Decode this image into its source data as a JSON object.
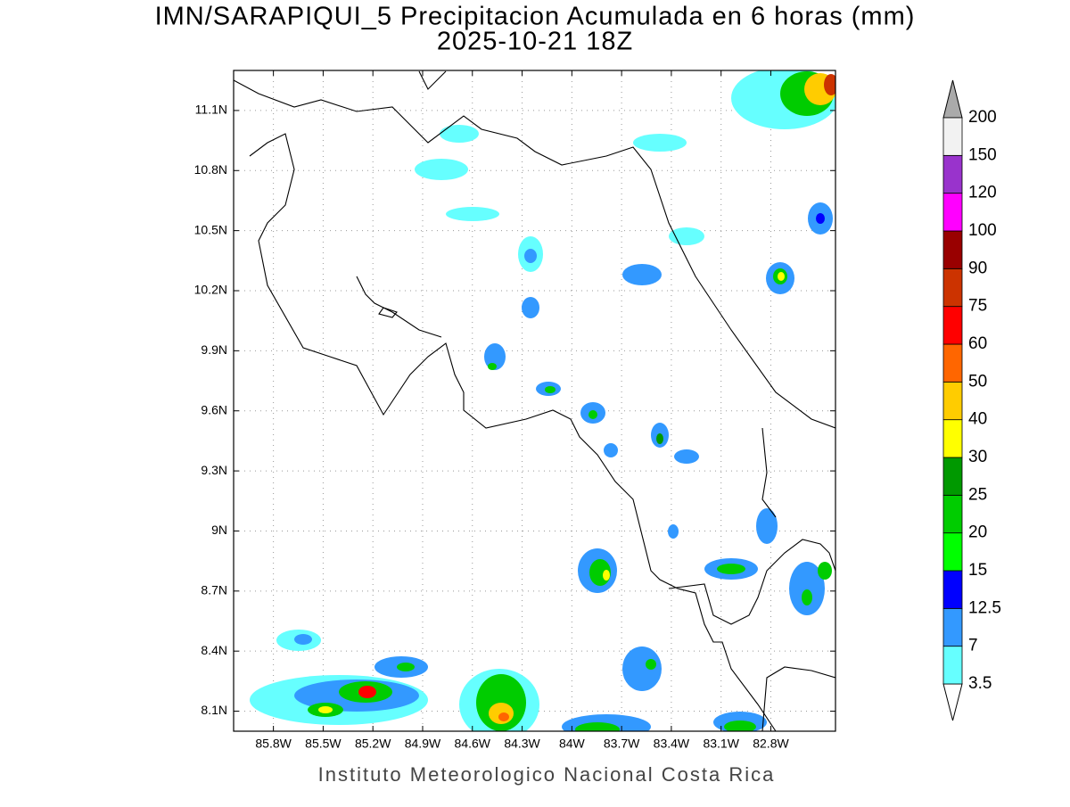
{
  "map": {
    "title": [
      "IMN/SARAPIQUI_5 Precipitacion Acumulada en 6 horas (mm)",
      "2025-10-21 18Z"
    ],
    "latlim": [
      8.0,
      11.3
    ],
    "lonlim": [
      -86.04,
      -82.41
    ],
    "latticks": [
      {
        "value": 8.1,
        "label": "8.1N"
      },
      {
        "value": 8.4,
        "label": "8.4N"
      },
      {
        "value": 8.7,
        "label": "8.7N"
      },
      {
        "value": 9.0,
        "label": "9N"
      },
      {
        "value": 9.3,
        "label": "9.3N"
      },
      {
        "value": 9.6,
        "label": "9.6N"
      },
      {
        "value": 9.9,
        "label": "9.9N"
      },
      {
        "value": 10.2,
        "label": "10.2N"
      },
      {
        "value": 10.5,
        "label": "10.5N"
      },
      {
        "value": 10.8,
        "label": "10.8N"
      },
      {
        "value": 11.1,
        "label": "11.1N"
      }
    ],
    "lonticks": [
      {
        "value": -85.8,
        "label": "85.8W"
      },
      {
        "value": -85.5,
        "label": "85.5W"
      },
      {
        "value": -85.2,
        "label": "85.2W"
      },
      {
        "value": -84.9,
        "label": "84.9W"
      },
      {
        "value": -84.6,
        "label": "84.6W"
      },
      {
        "value": -84.3,
        "label": "84.3W"
      },
      {
        "value": -84.0,
        "label": "84W"
      },
      {
        "value": -83.7,
        "label": "83.7W"
      },
      {
        "value": -83.4,
        "label": "83.4W"
      },
      {
        "value": -83.1,
        "label": "83.1W"
      },
      {
        "value": -82.8,
        "label": "82.8W"
      }
    ],
    "grid": true,
    "colorbar": {
      "levels": [
        3.5,
        7,
        12.5,
        15,
        20,
        25,
        30,
        40,
        50,
        60,
        75,
        90,
        100,
        120,
        150,
        200
      ],
      "colors": [
        "#66ffff",
        "#3399ff",
        "#0000ff",
        "#00ff00",
        "#00cc00",
        "#009900",
        "#ffff00",
        "#ffcc00",
        "#ff6600",
        "#ff0000",
        "#cc3300",
        "#990000",
        "#ff00ff",
        "#9933cc",
        "#f2f2f2"
      ]
    },
    "footer": "Instituto Meteorologico Nacional Costa Rica"
  }
}
